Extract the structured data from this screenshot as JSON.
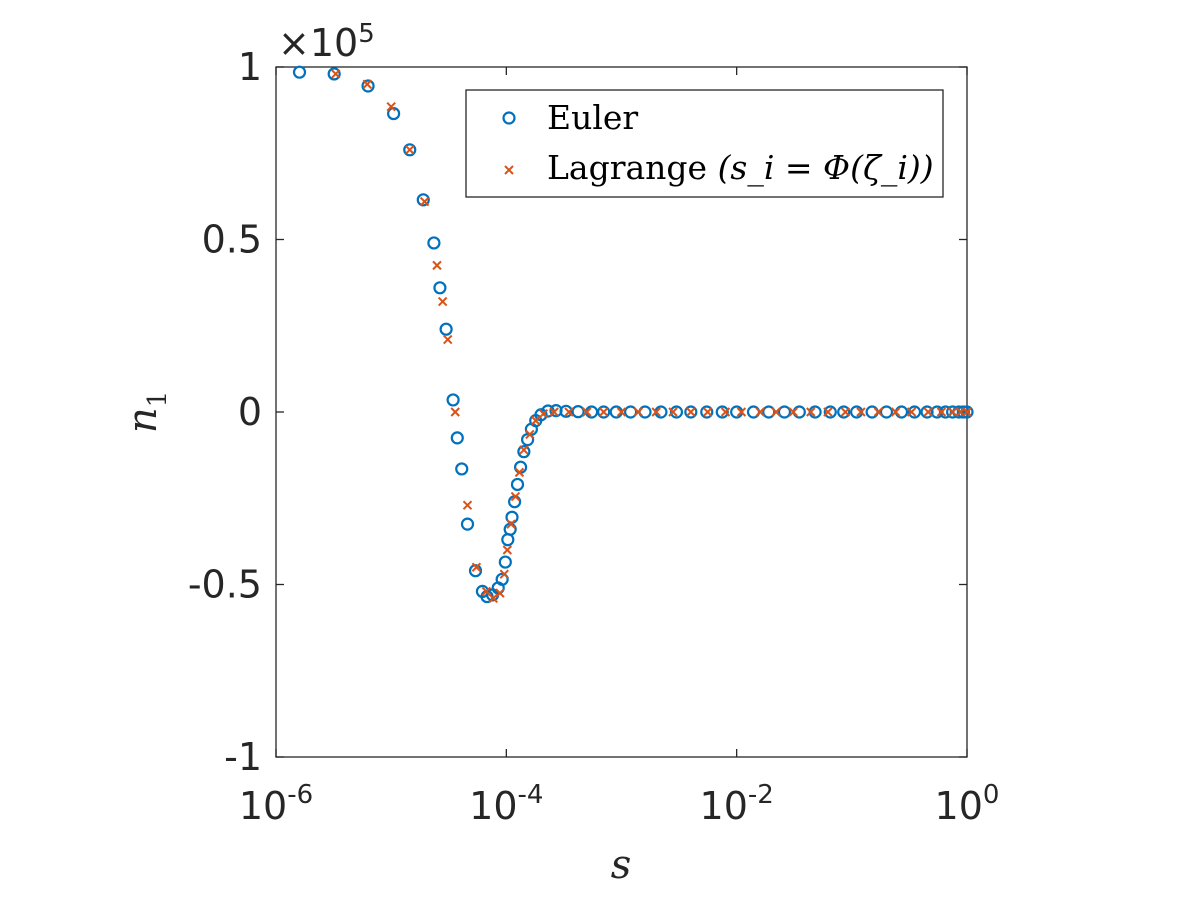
{
  "chart_data": {
    "type": "scatter",
    "xscale": "log",
    "xlim": [
      1e-06,
      1
    ],
    "ylim": [
      -100000,
      100000
    ],
    "xlabel": "s",
    "ylabel": "n",
    "ylabel_subscript": "1",
    "y_multiplier": "×10",
    "y_multiplier_exp": "5",
    "grid": false,
    "legend_position": "top-right",
    "x_ticks": [
      {
        "value": 1e-06,
        "base": "10",
        "exp": "-6"
      },
      {
        "value": 0.0001,
        "base": "10",
        "exp": "-4"
      },
      {
        "value": 0.01,
        "base": "10",
        "exp": "-2"
      },
      {
        "value": 1,
        "base": "10",
        "exp": "0"
      }
    ],
    "y_ticks": [
      {
        "value": 100000,
        "label": "1"
      },
      {
        "value": 50000,
        "label": "0.5"
      },
      {
        "value": 0,
        "label": "0"
      },
      {
        "value": -50000,
        "label": "-0.5"
      },
      {
        "value": -100000,
        "label": "-1"
      }
    ],
    "series": [
      {
        "name": "Euler",
        "marker": "circle",
        "color": "#0072BD",
        "points": [
          [
            1.6e-06,
            98500
          ],
          [
            3.2e-06,
            98000
          ],
          [
            6.3e-06,
            94500
          ],
          [
            1.05e-05,
            86500
          ],
          [
            1.45e-05,
            76000
          ],
          [
            1.9e-05,
            61500
          ],
          [
            2.35e-05,
            49000
          ],
          [
            2.65e-05,
            36000
          ],
          [
            3e-05,
            24000
          ],
          [
            3.45e-05,
            3500
          ],
          [
            3.75e-05,
            -7500
          ],
          [
            4.1e-05,
            -16500
          ],
          [
            4.6e-05,
            -32500
          ],
          [
            5.4e-05,
            -46000
          ],
          [
            6.2e-05,
            -52000
          ],
          [
            6.8e-05,
            -53500
          ],
          [
            7.6e-05,
            -53000
          ],
          [
            8.5e-05,
            -51000
          ],
          [
            9.2e-05,
            -48500
          ],
          [
            9.8e-05,
            -43500
          ],
          [
            0.000103,
            -37000
          ],
          [
            0.000108,
            -34000
          ],
          [
            0.000112,
            -30500
          ],
          [
            0.000118,
            -26000
          ],
          [
            0.000125,
            -21000
          ],
          [
            0.000133,
            -16000
          ],
          [
            0.000142,
            -11500
          ],
          [
            0.000153,
            -8000
          ],
          [
            0.000165,
            -5000
          ],
          [
            0.00018,
            -2500
          ],
          [
            0.0002,
            -800
          ],
          [
            0.00023,
            300
          ],
          [
            0.00027,
            400
          ],
          [
            0.00033,
            200
          ],
          [
            0.00042,
            100
          ],
          [
            0.00055,
            0
          ],
          [
            0.0007,
            0
          ],
          [
            0.0009,
            0
          ],
          [
            0.0012,
            0
          ],
          [
            0.0016,
            0
          ],
          [
            0.0022,
            0
          ],
          [
            0.003,
            0
          ],
          [
            0.004,
            0
          ],
          [
            0.0055,
            0
          ],
          [
            0.0075,
            0
          ],
          [
            0.01,
            0
          ],
          [
            0.014,
            0
          ],
          [
            0.019,
            0
          ],
          [
            0.026,
            0
          ],
          [
            0.035,
            0
          ],
          [
            0.048,
            0
          ],
          [
            0.065,
            0
          ],
          [
            0.085,
            0
          ],
          [
            0.11,
            0
          ],
          [
            0.15,
            0
          ],
          [
            0.2,
            0
          ],
          [
            0.27,
            0
          ],
          [
            0.35,
            0
          ],
          [
            0.45,
            0
          ],
          [
            0.55,
            0
          ],
          [
            0.65,
            0
          ],
          [
            0.75,
            0
          ],
          [
            0.85,
            0
          ],
          [
            0.93,
            0
          ],
          [
            1.0,
            0
          ]
        ]
      },
      {
        "name": "Lagrange (s_i = Φ(ζ_i))",
        "marker": "x",
        "color": "#D95319",
        "points": [
          [
            3.3e-06,
            98000
          ],
          [
            6.2e-06,
            95000
          ],
          [
            1e-05,
            88500
          ],
          [
            1.45e-05,
            76000
          ],
          [
            1.95e-05,
            61000
          ],
          [
            2.5e-05,
            42500
          ],
          [
            2.8e-05,
            32000
          ],
          [
            3.1e-05,
            21000
          ],
          [
            3.6e-05,
            0
          ],
          [
            4.6e-05,
            -27000
          ],
          [
            5.5e-05,
            -45000
          ],
          [
            6.7e-05,
            -52000
          ],
          [
            7.7e-05,
            -54000
          ],
          [
            8.8e-05,
            -52500
          ],
          [
            9.6e-05,
            -47000
          ],
          [
            0.000102,
            -40000
          ],
          [
            0.00011,
            -32500
          ],
          [
            0.00012,
            -24500
          ],
          [
            0.00013,
            -17500
          ],
          [
            0.000142,
            -11000
          ],
          [
            0.00016,
            -6500
          ],
          [
            0.00018,
            -2500
          ],
          [
            0.00021,
            -500
          ],
          [
            0.00026,
            0
          ],
          [
            0.00035,
            0
          ],
          [
            0.0005,
            0
          ],
          [
            0.0007,
            0
          ],
          [
            0.001,
            0
          ],
          [
            0.0014,
            0
          ],
          [
            0.002,
            0
          ],
          [
            0.0028,
            0
          ],
          [
            0.004,
            0
          ],
          [
            0.0056,
            0
          ],
          [
            0.008,
            0
          ],
          [
            0.011,
            0
          ],
          [
            0.016,
            0
          ],
          [
            0.022,
            0
          ],
          [
            0.031,
            0
          ],
          [
            0.044,
            0
          ],
          [
            0.062,
            0
          ],
          [
            0.088,
            0
          ],
          [
            0.12,
            0
          ],
          [
            0.17,
            0
          ],
          [
            0.24,
            0
          ],
          [
            0.33,
            0
          ],
          [
            0.46,
            0
          ],
          [
            0.6,
            0
          ],
          [
            0.75,
            0
          ],
          [
            0.88,
            0
          ],
          [
            1.0,
            0
          ]
        ]
      }
    ],
    "legend": {
      "entries": [
        {
          "label": "Euler",
          "marker": "circle",
          "color": "#0072BD"
        },
        {
          "label_prefix": "Lagrange ",
          "label_math": "(s_i = Φ(ζ_i))",
          "marker": "x",
          "color": "#D95319"
        }
      ]
    }
  }
}
